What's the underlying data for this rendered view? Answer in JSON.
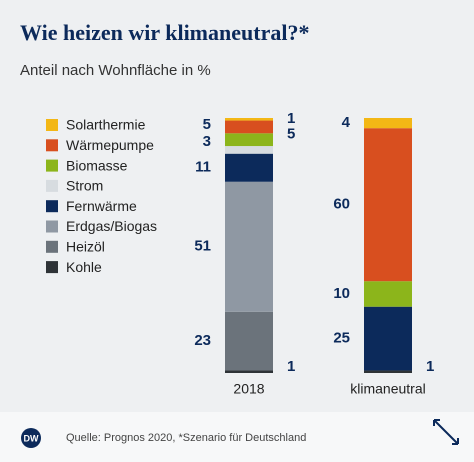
{
  "chart_data": {
    "type": "stacked-bar",
    "title": "Wie heizen wir klimaneutral?*",
    "subtitle": "Anteil nach Wohnfläche in %",
    "source": "Quelle: Prognos 2020, *Szenario für Deutschland",
    "logo": "DW",
    "categories": [
      "2018",
      "klimaneutral"
    ],
    "ylim": [
      0,
      100
    ],
    "series": [
      {
        "name": "Kohle",
        "color": "#2e3337",
        "values": [
          1,
          1
        ]
      },
      {
        "name": "Heizöl",
        "color": "#6b737b",
        "values": [
          23,
          0
        ]
      },
      {
        "name": "Erdgas/Biogas",
        "color": "#8f98a3",
        "values": [
          51,
          0
        ]
      },
      {
        "name": "Fernwärme",
        "color": "#0c2a5b",
        "values": [
          11,
          25
        ]
      },
      {
        "name": "Strom",
        "color": "#d7dce0",
        "values": [
          3,
          0
        ]
      },
      {
        "name": "Biomasse",
        "color": "#8cb51b",
        "values": [
          5,
          10
        ]
      },
      {
        "name": "Wärmepumpe",
        "color": "#d84f1f",
        "values": [
          5,
          60
        ]
      },
      {
        "name": "Solarthermie",
        "color": "#f3b715",
        "values": [
          1,
          4
        ]
      }
    ]
  }
}
